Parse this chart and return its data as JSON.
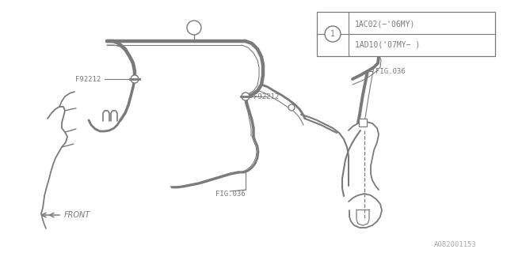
{
  "bg_color": "#ffffff",
  "line_color": "#7a7a7a",
  "text_color": "#7a7a7a",
  "fig_size": [
    6.4,
    3.2
  ],
  "dpi": 100,
  "watermark": "A082001153",
  "legend_line1": "1AC02(−'06MY)",
  "legend_line2": "1AD10('07MY− )",
  "circle1_label": "1",
  "f92212": "F92212",
  "fig036": "FIG.036",
  "front_label": "FRONT"
}
